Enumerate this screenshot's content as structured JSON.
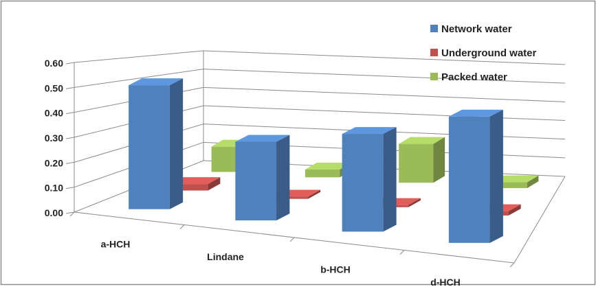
{
  "chart_data": {
    "type": "bar",
    "subtype": "3d-clustered-column",
    "categories": [
      "a-HCH",
      "Lindane",
      "b-HCH",
      "d-HCH"
    ],
    "series": [
      {
        "name": "Network water",
        "color": "#4F81BD",
        "values": [
          0.52,
          0.33,
          0.41,
          0.53
        ]
      },
      {
        "name": "Underground water",
        "color": "#C0504D",
        "values": [
          0.03,
          0.01,
          0.01,
          0.02
        ]
      },
      {
        "name": "Packed water",
        "color": "#9BBB59",
        "values": [
          0.13,
          0.04,
          0.2,
          0.03
        ]
      }
    ],
    "y_ticks": [
      "0.00",
      "0.10",
      "0.20",
      "0.30",
      "0.40",
      "0.50",
      "0.60"
    ],
    "ylim": [
      0,
      0.6
    ],
    "grid": true,
    "legend": "top-right"
  }
}
